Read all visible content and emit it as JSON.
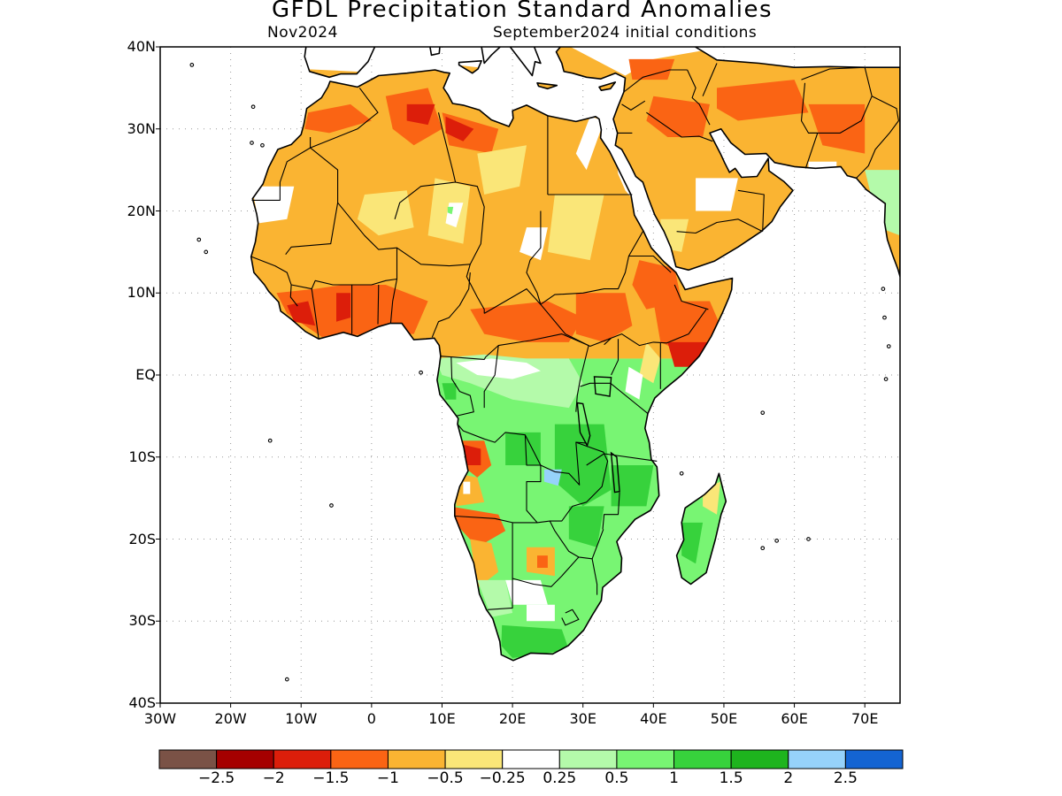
{
  "title": "GFDL Precipitation Standard Anomalies",
  "subtitle_left": "Nov2024",
  "subtitle_right": "September2024 initial conditions",
  "map": {
    "lon_range": [
      -30,
      75
    ],
    "lat_range": [
      -40,
      40
    ],
    "lat_ticks": [
      {
        "value": 40,
        "label": "40N"
      },
      {
        "value": 30,
        "label": "30N"
      },
      {
        "value": 20,
        "label": "20N"
      },
      {
        "value": 10,
        "label": "10N"
      },
      {
        "value": 0,
        "label": "EQ"
      },
      {
        "value": -10,
        "label": "10S"
      },
      {
        "value": -20,
        "label": "20S"
      },
      {
        "value": -30,
        "label": "30S"
      },
      {
        "value": -40,
        "label": "40S"
      }
    ],
    "lon_ticks": [
      {
        "value": -30,
        "label": "30W"
      },
      {
        "value": -20,
        "label": "20W"
      },
      {
        "value": -10,
        "label": "10W"
      },
      {
        "value": 0,
        "label": "0"
      },
      {
        "value": 10,
        "label": "10E"
      },
      {
        "value": 20,
        "label": "20E"
      },
      {
        "value": 30,
        "label": "30E"
      },
      {
        "value": 40,
        "label": "40E"
      },
      {
        "value": 50,
        "label": "50E"
      },
      {
        "value": 60,
        "label": "60E"
      },
      {
        "value": 70,
        "label": "70E"
      }
    ],
    "grid": "dotted"
  },
  "colorbar": {
    "colors": [
      "#7a5246",
      "#a50000",
      "#dc1e0a",
      "#fa6414",
      "#fab432",
      "#fae678",
      "#ffffff",
      "#b4faaa",
      "#78f573",
      "#37d23c",
      "#1eb41e",
      "#96d2fa",
      "#1464d2"
    ],
    "labels": [
      "−2.5",
      "−2",
      "−1.5",
      "−1",
      "−0.5",
      "−0.25",
      "0.25",
      "0.5",
      "1",
      "1.5",
      "2",
      "2.5"
    ]
  },
  "colors": {
    "very_dry": "#dc1e0a",
    "dry": "#fa6414",
    "moderately_dry": "#fab432",
    "slightly_dry": "#fae678",
    "slightly_wet": "#b4faaa",
    "wet": "#78f573",
    "very_wet": "#37d23c",
    "extreme_wet": "#96d2fa"
  }
}
